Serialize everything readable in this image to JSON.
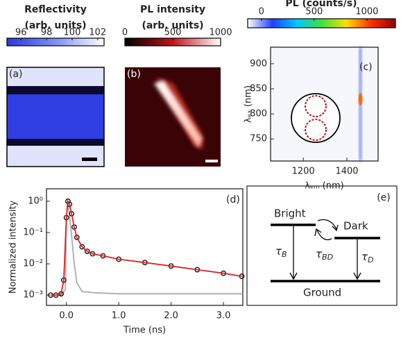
{
  "chart_data": [
    {
      "type": "image",
      "panel_label": "(a)",
      "colorbar": {
        "title": "Reflectivity",
        "subtitle": "(arb. units)",
        "lim": [
          94.9,
          102.5
        ],
        "ticks": [
          96,
          98,
          100,
          102
        ],
        "colors": [
          "#2a3ad8",
          "#7e8ff0",
          "#ffffff"
        ]
      }
    },
    {
      "type": "image",
      "panel_label": "(b)",
      "colorbar": {
        "title": "PL intensity",
        "subtitle": "(arb. units)",
        "lim": [
          0,
          1000
        ],
        "ticks": [
          0,
          500,
          1000
        ],
        "colors": [
          "#000000",
          "#c0141a",
          "#ffffff"
        ]
      }
    },
    {
      "type": "image",
      "panel_label": "(c)",
      "colorbar": {
        "title": "PL (counts/s)",
        "lim": [
          -130,
          1270
        ],
        "ticks": [
          0,
          500,
          1000
        ],
        "colors": [
          "#ffffff",
          "#2040ff",
          "#00c8ff",
          "#40e040",
          "#ffe000",
          "#ff3000",
          "#900000"
        ]
      },
      "xlabel": "λₑₘ (nm)",
      "ylabel": "λₑₓ (nm)",
      "xlim": [
        1050,
        1543
      ],
      "xticks": [
        1200,
        1400
      ],
      "ylim": [
        706,
        933
      ],
      "yticks": [
        750,
        800,
        850,
        900
      ]
    },
    {
      "type": "line",
      "panel_label": "(d)",
      "xlabel": "Time (ns)",
      "ylabel": "Normalized intensity",
      "log_y": true,
      "xlim": [
        -0.38,
        3.37
      ],
      "ylim": [
        0.00047,
        2.5
      ],
      "xticks": [
        {
          "value": 0,
          "label": "0.0"
        },
        {
          "value": 1,
          "label": "1.0"
        },
        {
          "value": 2,
          "label": "2.0"
        },
        {
          "value": 3,
          "label": "3.0"
        }
      ],
      "yticks": [
        {
          "value": 1,
          "label": "10⁰"
        },
        {
          "value": 0.1,
          "label": "10⁻¹"
        },
        {
          "value": 0.01,
          "label": "10⁻²"
        },
        {
          "value": 0.001,
          "label": "10⁻³"
        }
      ],
      "series": [
        {
          "color": "#aaaaaa",
          "mode": "line",
          "x": [
            -0.3,
            -0.1,
            -0.02,
            0.0,
            0.02,
            0.05,
            0.1,
            0.15,
            0.2,
            0.3,
            0.5,
            1.0,
            2.0,
            3.35
          ],
          "values": [
            0.001,
            0.001,
            0.0015,
            0.2,
            1.0,
            0.5,
            0.08,
            0.01,
            0.0025,
            0.0013,
            0.0012,
            0.0011,
            0.0011,
            0.0011
          ]
        },
        {
          "color": "#111111",
          "mode": "markers",
          "x": [
            -0.3,
            -0.2,
            -0.1,
            -0.05,
            0.0,
            0.03,
            0.06,
            0.1,
            0.15,
            0.2,
            0.3,
            0.4,
            0.5,
            0.7,
            1.0,
            1.5,
            2.0,
            2.5,
            3.0,
            3.35
          ],
          "values": [
            0.001,
            0.001,
            0.0011,
            0.003,
            0.3,
            1.0,
            0.8,
            0.4,
            0.15,
            0.07,
            0.035,
            0.025,
            0.021,
            0.018,
            0.014,
            0.011,
            0.0085,
            0.0065,
            0.005,
            0.004
          ]
        },
        {
          "color": "#e02020",
          "mode": "line",
          "x": [
            -0.3,
            -0.2,
            -0.1,
            -0.05,
            0.0,
            0.03,
            0.06,
            0.1,
            0.15,
            0.2,
            0.3,
            0.4,
            0.5,
            0.7,
            1.0,
            1.5,
            2.0,
            2.5,
            3.0,
            3.35
          ],
          "values": [
            0.001,
            0.001,
            0.0011,
            0.003,
            0.3,
            1.0,
            0.8,
            0.4,
            0.15,
            0.07,
            0.035,
            0.025,
            0.021,
            0.018,
            0.014,
            0.011,
            0.0085,
            0.0065,
            0.005,
            0.004
          ]
        }
      ]
    }
  ],
  "diagram": {
    "panel_label": "(e)",
    "bright": "Bright",
    "dark": "Dark",
    "ground": "Ground",
    "tau_b": {
      "symbol": "τ",
      "sub": "B"
    },
    "tau_bd": {
      "symbol": "τ",
      "sub": "BD"
    },
    "tau_d": {
      "symbol": "τ",
      "sub": "D"
    }
  }
}
